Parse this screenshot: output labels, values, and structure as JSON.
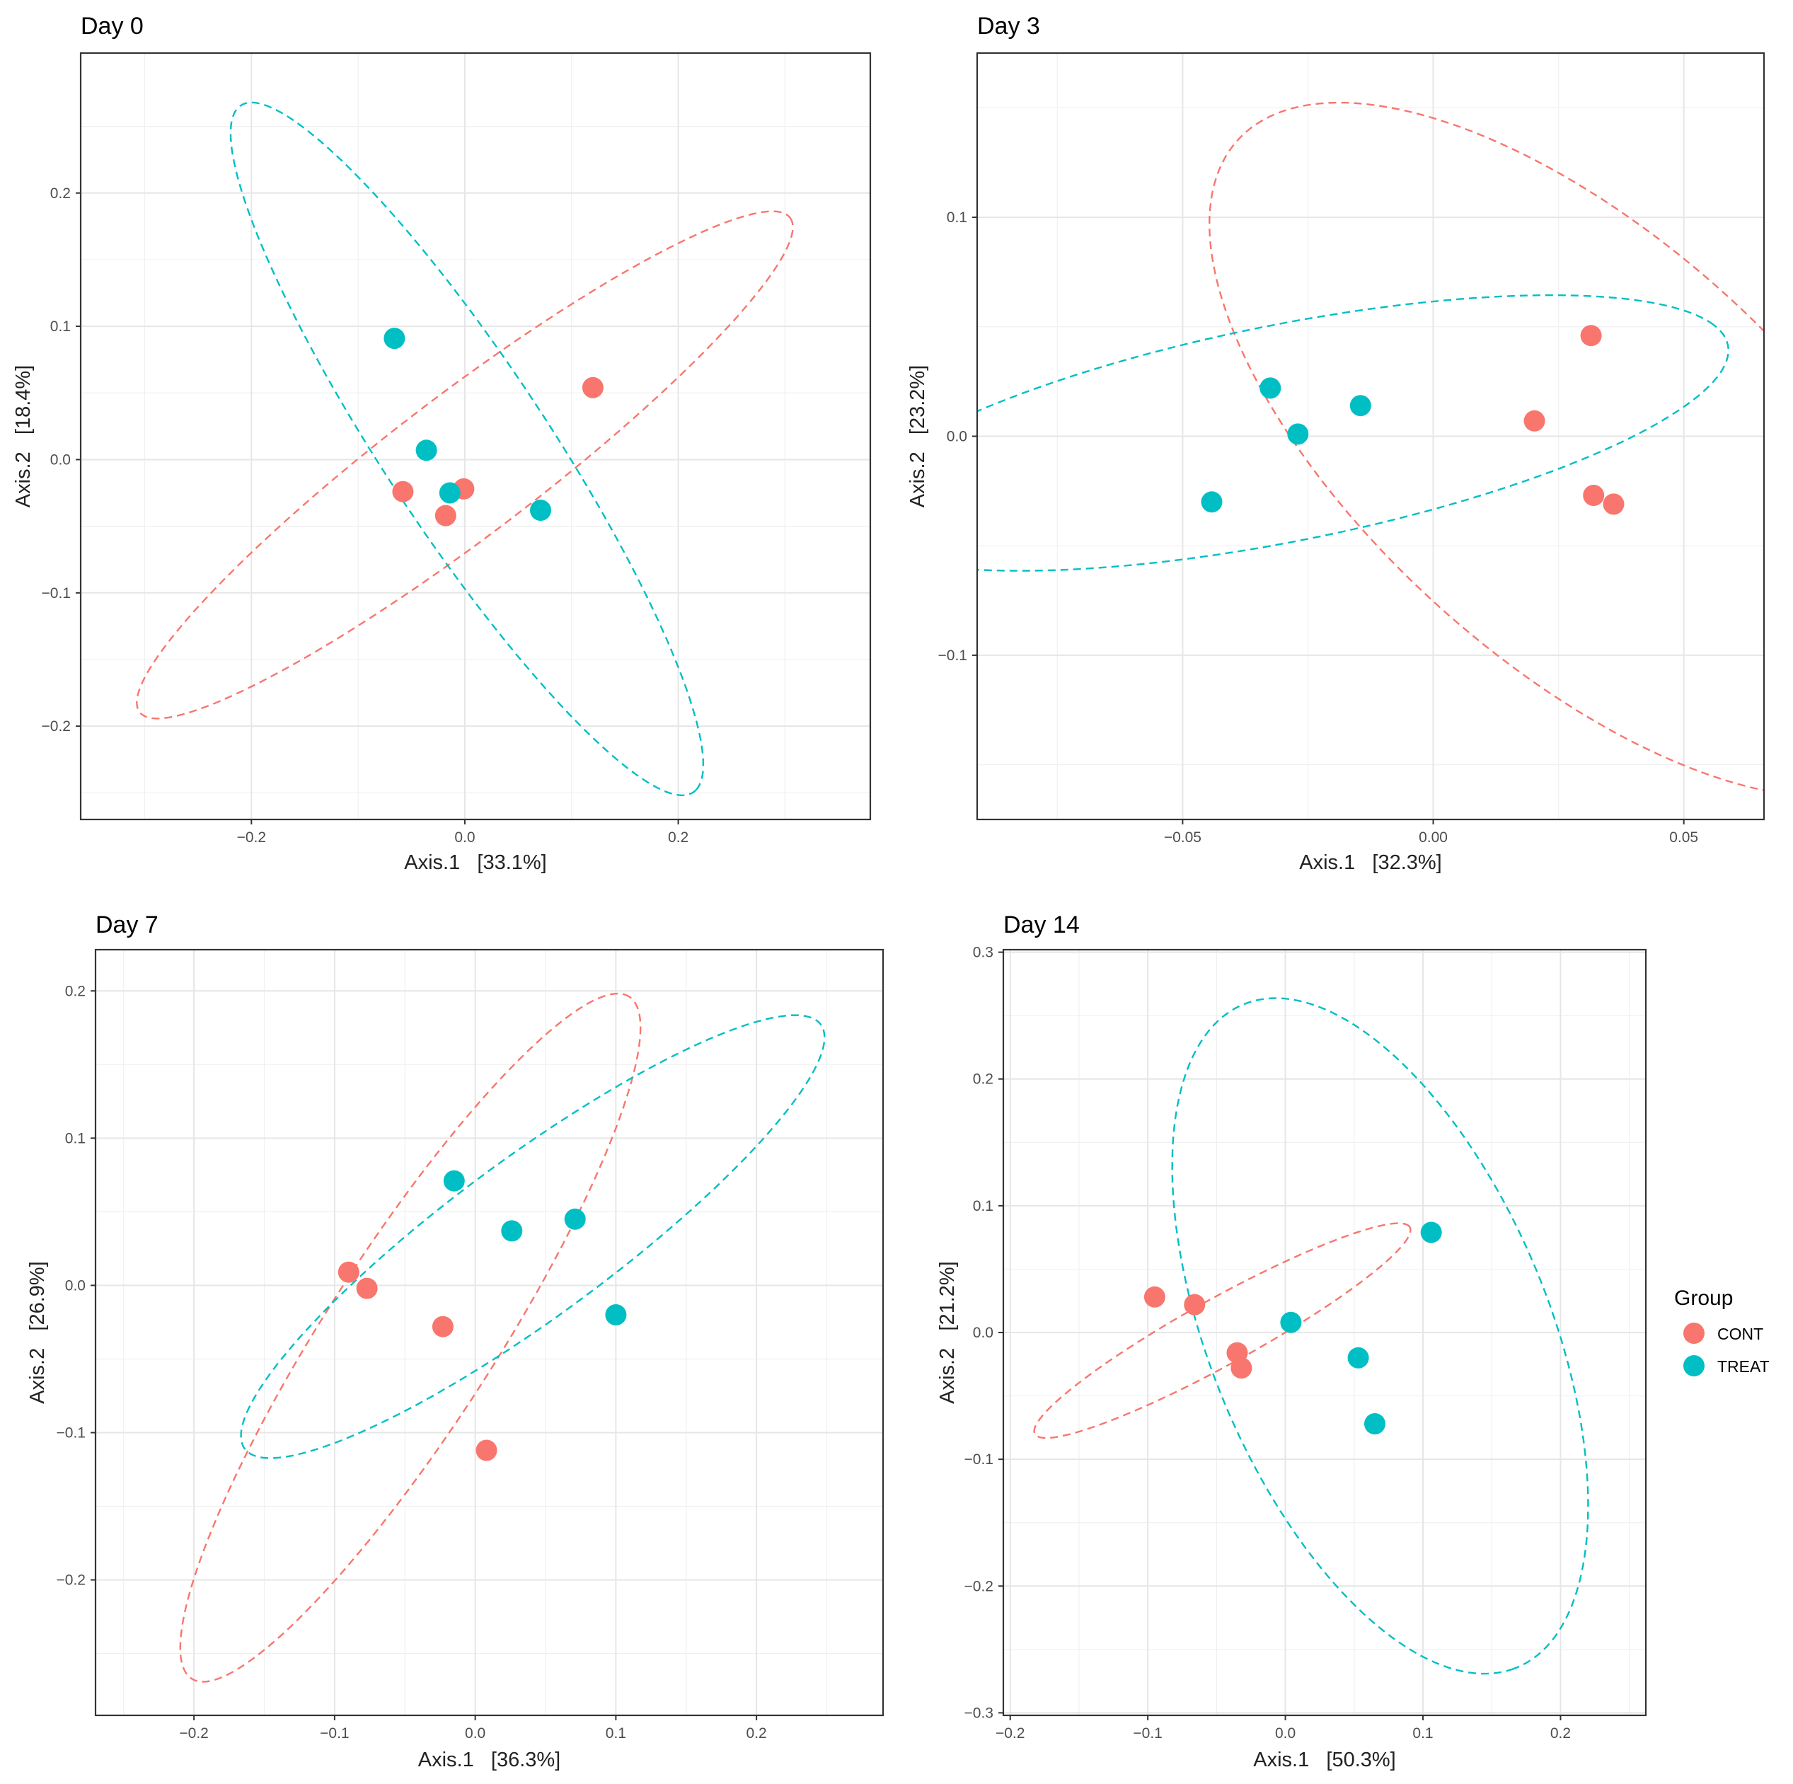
{
  "chart_data": [
    {
      "type": "scatter",
      "title": "Day 0",
      "xlabel": "Axis.1   [33.1%]",
      "ylabel": "Axis.2   [18.4%]",
      "xlim": [
        -0.36,
        0.38
      ],
      "ylim": [
        -0.27,
        0.305
      ],
      "xticks": [
        -0.2,
        0.0,
        0.2
      ],
      "yticks": [
        -0.2,
        -0.1,
        0.0,
        0.1,
        0.2
      ],
      "xtick_labels": [
        "-0.2",
        "0.0",
        "0.2"
      ],
      "ytick_labels": [
        "-0.2",
        "-0.1",
        "0.0",
        "0.1",
        "0.2"
      ],
      "grid": true,
      "series": [
        {
          "name": "CONT",
          "color": "#F8766D",
          "x": [
            0.12,
            -0.058,
            -0.001,
            -0.018
          ],
          "y": [
            0.054,
            -0.024,
            -0.022,
            -0.042
          ],
          "ellipse": {
            "cx": 0.0,
            "cy": -0.004,
            "rx": 0.357,
            "ry": 0.057,
            "angle_deg": 31
          }
        },
        {
          "name": "TREAT",
          "color": "#00BFC4",
          "x": [
            -0.066,
            -0.036,
            -0.014,
            0.071
          ],
          "y": [
            0.091,
            0.007,
            -0.025,
            -0.038
          ],
          "ellipse": {
            "cx": 0.002,
            "cy": 0.008,
            "rx": 0.334,
            "ry": 0.071,
            "angle_deg": -50
          }
        }
      ]
    },
    {
      "type": "scatter",
      "title": "Day 3",
      "xlabel": "Axis.1   [32.3%]",
      "ylabel": "Axis.2   [23.2%]",
      "xlim": [
        -0.091,
        0.066
      ],
      "ylim": [
        -0.175,
        0.175
      ],
      "xticks": [
        -0.05,
        0.0,
        0.05
      ],
      "yticks": [
        -0.1,
        0.0,
        0.1
      ],
      "xtick_labels": [
        "-0.05",
        "0.00",
        "0.05"
      ],
      "ytick_labels": [
        "-0.1",
        "0.0",
        "0.1"
      ],
      "grid": true,
      "series": [
        {
          "name": "CONT",
          "color": "#F8766D",
          "x": [
            0.0315,
            0.0202,
            0.032,
            0.036
          ],
          "y": [
            0.046,
            0.007,
            -0.027,
            -0.031
          ],
          "ellipse": {
            "cx": 0.0296,
            "cy": -0.0062,
            "rx": 0.1667,
            "ry": 0.0536,
            "angle_deg": -71
          }
        },
        {
          "name": "TREAT",
          "color": "#00BFC4",
          "x": [
            -0.0325,
            -0.0145,
            -0.027,
            -0.0442
          ],
          "y": [
            0.022,
            0.014,
            0.001,
            -0.03
          ],
          "ellipse": {
            "cx": -0.0295,
            "cy": 0.0015,
            "rx": 0.0987,
            "ry": 0.0451,
            "angle_deg": 30
          }
        }
      ]
    },
    {
      "type": "scatter",
      "title": "Day 7",
      "xlabel": "Axis.1   [36.3%]",
      "ylabel": "Axis.2   [26.9%]",
      "xlim": [
        -0.27,
        0.29
      ],
      "ylim": [
        -0.292,
        0.228
      ],
      "xticks": [
        -0.2,
        -0.1,
        0.0,
        0.1,
        0.2
      ],
      "yticks": [
        -0.2,
        -0.1,
        0.0,
        0.1,
        0.2
      ],
      "xtick_labels": [
        "-0.2",
        "-0.1",
        "0.0",
        "0.1",
        "0.2"
      ],
      "ytick_labels": [
        "-0.2",
        "-0.1",
        "0.0",
        "0.1",
        "0.2"
      ],
      "grid": true,
      "series": [
        {
          "name": "CONT",
          "color": "#F8766D",
          "x": [
            -0.09,
            -0.077,
            -0.023,
            0.008
          ],
          "y": [
            0.009,
            -0.002,
            -0.028,
            -0.112
          ],
          "ellipse": {
            "cx": -0.0461,
            "cy": -0.0355,
            "rx": 0.279,
            "ry": 0.0595,
            "angle_deg": 56
          }
        },
        {
          "name": "TREAT",
          "color": "#00BFC4",
          "x": [
            -0.015,
            0.026,
            0.071,
            0.1
          ],
          "y": [
            0.071,
            0.037,
            0.045,
            -0.02
          ],
          "ellipse": {
            "cx": 0.0409,
            "cy": 0.0331,
            "rx": 0.2504,
            "ry": 0.0545,
            "angle_deg": 35
          }
        }
      ]
    },
    {
      "type": "scatter",
      "title": "Day 14",
      "xlabel": "Axis.1   [50.3%]",
      "ylabel": "Axis.2   [21.2%]",
      "xlim": [
        -0.205,
        0.262
      ],
      "ylim": [
        -0.302,
        0.302
      ],
      "xticks": [
        -0.2,
        -0.1,
        0.0,
        0.1,
        0.2
      ],
      "yticks": [
        -0.3,
        -0.2,
        -0.1,
        0.0,
        0.1,
        0.2,
        0.3
      ],
      "xtick_labels": [
        "-0.2",
        "-0.1",
        "0.0",
        "0.1",
        "0.2"
      ],
      "ytick_labels": [
        "-0.3",
        "-0.2",
        "-0.1",
        "0.0",
        "0.1",
        "0.2",
        "0.3"
      ],
      "grid": true,
      "series": [
        {
          "name": "CONT",
          "color": "#F8766D",
          "x": [
            -0.095,
            -0.066,
            -0.035,
            -0.032
          ],
          "y": [
            0.028,
            0.022,
            -0.016,
            -0.028
          ],
          "ellipse": {
            "cx": -0.0458,
            "cy": 0.0015,
            "rx": 0.1588,
            "ry": 0.0256,
            "angle_deg": 31
          }
        },
        {
          "name": "TREAT",
          "color": "#00BFC4",
          "x": [
            0.106,
            0.004,
            0.053,
            0.065
          ],
          "y": [
            0.079,
            0.008,
            -0.02,
            -0.072
          ],
          "ellipse": {
            "cx": 0.0689,
            "cy": -0.0027,
            "rx": 0.2799,
            "ry": 0.1245,
            "angle_deg": -70
          }
        }
      ]
    }
  ],
  "legend": {
    "title": "Group",
    "items": [
      {
        "label": "CONT",
        "color": "#F8766D"
      },
      {
        "label": "TREAT",
        "color": "#00BFC4"
      }
    ]
  }
}
